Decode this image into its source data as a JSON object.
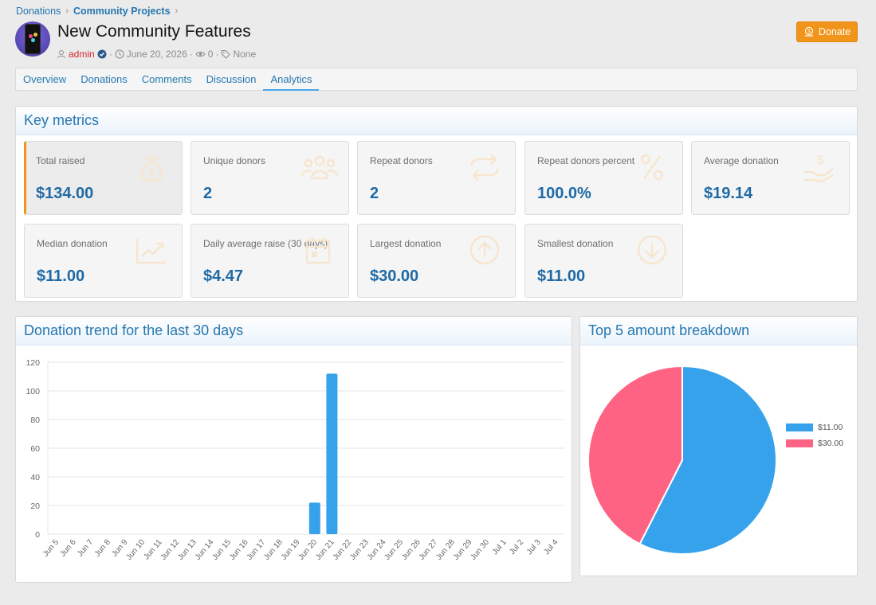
{
  "breadcrumb": {
    "root": "Donations",
    "section": "Community Projects"
  },
  "page": {
    "title": "New Community Features",
    "author": "admin",
    "date": "June 20, 2026",
    "views": "0",
    "tags": "None",
    "donate_label": "Donate"
  },
  "tabs": [
    "Overview",
    "Donations",
    "Comments",
    "Discussion",
    "Analytics"
  ],
  "active_tab": "Analytics",
  "key_metrics": {
    "title": "Key metrics",
    "items": [
      {
        "label": "Total raised",
        "value": "$134.00",
        "icon": "money-bag-icon"
      },
      {
        "label": "Unique donors",
        "value": "2",
        "icon": "users-icon"
      },
      {
        "label": "Repeat donors",
        "value": "2",
        "icon": "repeat-icon"
      },
      {
        "label": "Repeat donors percent",
        "value": "100.0%",
        "icon": "percent-icon"
      },
      {
        "label": "Average donation",
        "value": "$19.14",
        "icon": "hand-dollar-icon"
      },
      {
        "label": "Median donation",
        "value": "$11.00",
        "icon": "trend-up-icon"
      },
      {
        "label": "Daily average raise (30 days)",
        "value": "$4.47",
        "icon": "calendar-icon"
      },
      {
        "label": "Largest donation",
        "value": "$30.00",
        "icon": "arrow-up-circle-icon"
      },
      {
        "label": "Smallest donation",
        "value": "$11.00",
        "icon": "arrow-down-circle-icon"
      }
    ]
  },
  "trend": {
    "title": "Donation trend for the last 30 days"
  },
  "breakdown": {
    "title": "Top 5 amount breakdown"
  },
  "colors": {
    "accent": "#2577b1",
    "orange": "#f1941a",
    "blue": "#36a2eb",
    "pink": "#ff6384"
  },
  "chart_data": [
    {
      "type": "bar",
      "categories": [
        "Jun 5",
        "Jun 6",
        "Jun 7",
        "Jun 8",
        "Jun 9",
        "Jun 10",
        "Jun 11",
        "Jun 12",
        "Jun 13",
        "Jun 14",
        "Jun 15",
        "Jun 16",
        "Jun 17",
        "Jun 18",
        "Jun 19",
        "Jun 20",
        "Jun 21",
        "Jun 22",
        "Jun 23",
        "Jun 24",
        "Jun 25",
        "Jun 26",
        "Jun 27",
        "Jun 28",
        "Jun 29",
        "Jun 30",
        "Jul 1",
        "Jul 2",
        "Jul 3",
        "Jul 4"
      ],
      "values": [
        0,
        0,
        0,
        0,
        0,
        0,
        0,
        0,
        0,
        0,
        0,
        0,
        0,
        0,
        0,
        22,
        112,
        0,
        0,
        0,
        0,
        0,
        0,
        0,
        0,
        0,
        0,
        0,
        0,
        0
      ],
      "yticks": [
        "0",
        "20",
        "40",
        "60",
        "80",
        "100",
        "120"
      ],
      "ylim": [
        0,
        120
      ],
      "grid": true,
      "color": "#36a2eb"
    },
    {
      "type": "pie",
      "labels": [
        "$11.00",
        "$30.00"
      ],
      "values": [
        77,
        57
      ],
      "colors": [
        "#36a2eb",
        "#ff6384"
      ],
      "legend": "right"
    }
  ]
}
